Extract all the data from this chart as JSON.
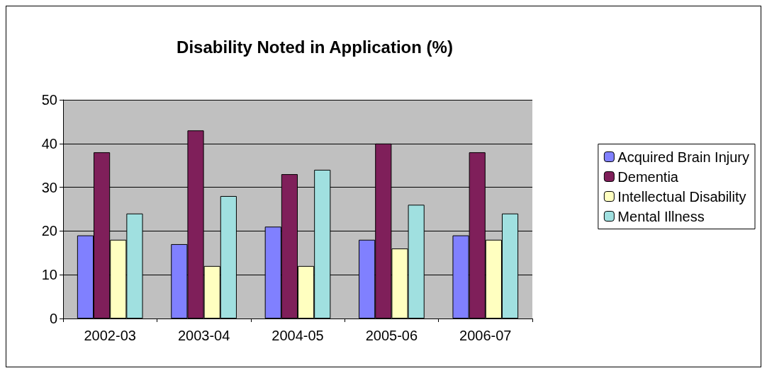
{
  "chart_data": {
    "type": "bar",
    "title": "Disability Noted in Application (%)",
    "categories": [
      "2002-03",
      "2003-04",
      "2004-05",
      "2005-06",
      "2006-07"
    ],
    "series": [
      {
        "name": "Acquired Brain Injury",
        "color": "#8080ff",
        "values": [
          19,
          17,
          21,
          18,
          19
        ]
      },
      {
        "name": "Dementia",
        "color": "#7f1f5a",
        "values": [
          38,
          43,
          33,
          40,
          38
        ]
      },
      {
        "name": "Intellectual Disability",
        "color": "#ffffc0",
        "values": [
          18,
          12,
          12,
          16,
          18
        ]
      },
      {
        "name": "Mental Illness",
        "color": "#a0e0e0",
        "values": [
          24,
          28,
          34,
          26,
          24
        ]
      }
    ],
    "ylim": [
      0,
      50
    ],
    "yticks": [
      0,
      10,
      20,
      30,
      40,
      50
    ],
    "grid": "y",
    "legend": "right"
  }
}
